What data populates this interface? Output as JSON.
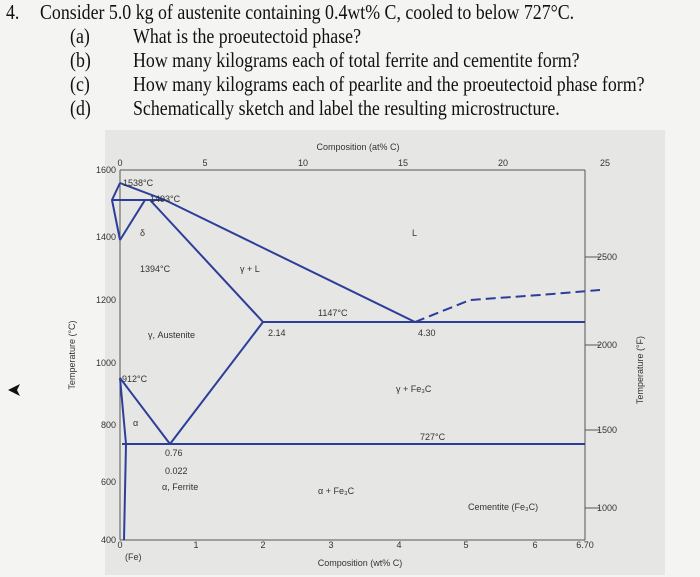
{
  "problem": {
    "number": "4.",
    "stem": "Consider 5.0 kg of austenite containing 0.4wt% C, cooled to below 727°C.",
    "parts": [
      {
        "label": "(a)",
        "text": "What is the proeutectoid phase?"
      },
      {
        "label": "(b)",
        "text": "How many kilograms each of total ferrite and cementite form?"
      },
      {
        "label": "(c)",
        "text": "How many kilograms each of pearlite and the proeutectoid phase form?"
      },
      {
        "label": "(d)",
        "text": "Schematically sketch and label the resulting microstructure."
      }
    ]
  },
  "diagram": {
    "top_axis_title": "Composition (at% C)",
    "top_ticks": [
      "0",
      "5",
      "10",
      "15",
      "20",
      "25"
    ],
    "bottom_axis_title": "Composition (wt% C)",
    "bottom_ticks": [
      "0",
      "1",
      "2",
      "3",
      "4",
      "5",
      "6",
      "6.70"
    ],
    "fe_label": "(Fe)",
    "left_axis_title": "Temperature (°C)",
    "left_ticks": [
      "1600",
      "1400",
      "1200",
      "1000",
      "800",
      "600",
      "400"
    ],
    "right_axis_title": "Temperature (°F)",
    "right_ticks": [
      "2500",
      "2000",
      "1500",
      "1000"
    ],
    "labels": [
      "1538°C",
      "1493°C",
      "δ",
      "L",
      "1394°C",
      "γ + L",
      "1147°C",
      "γ, Austenite",
      "2.14",
      "4.30",
      "912°C",
      "γ + Fe₃C",
      "α",
      "727°C",
      "0.76",
      "0.022",
      "α, Ferrite",
      "α + Fe₃C",
      "Cementite (Fe₃C)"
    ]
  }
}
